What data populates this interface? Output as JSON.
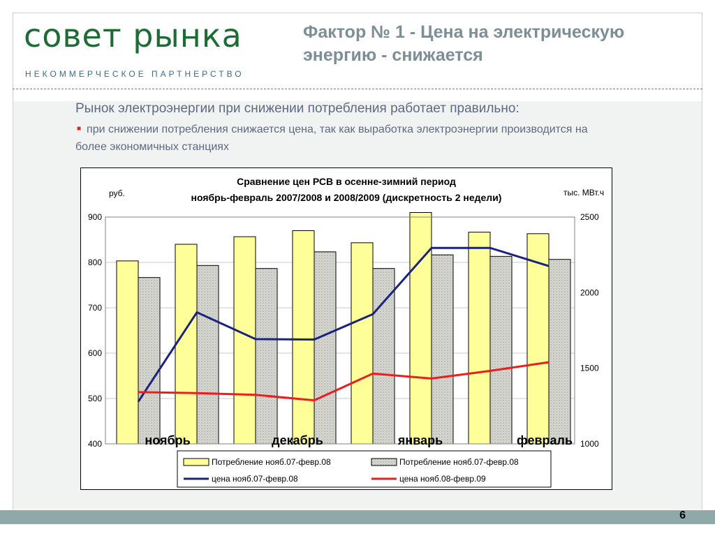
{
  "header": {
    "logo_title": "совет рынка",
    "logo_subtitle": "НЕКОММЕРЧЕСКОЕ ПАРТНЕРСТВО",
    "slide_title": "Фактор № 1 - Цена на электрическую энергию - снижается",
    "brand_color": "#1f6b36"
  },
  "body": {
    "heading": "Рынок электроэнергии при снижении потребления работает правильно:",
    "bullet": "при снижении потребления снижается цена, так как выработка электроэнергии производится на более экономичных станциях"
  },
  "footer": {
    "page_number": "6"
  },
  "chart_data": {
    "type": "bar",
    "title": "Сравнение цен РСВ в осенне-зимний период",
    "subtitle": "ноябрь-февраль 2007/2008 и 2008/2009 (дискретность 2 недели)",
    "ylabel_left": "руб.",
    "ylabel_right": "тыс. МВт.ч",
    "ylim_left": [
      400,
      900
    ],
    "ylim_right": [
      1000,
      2500
    ],
    "yticks_left": [
      "900",
      "800",
      "700",
      "600",
      "500",
      "400"
    ],
    "yticks_right": [
      "2500",
      "2000",
      "1500",
      "1000"
    ],
    "month_labels": [
      "ноябрь",
      "декабрь",
      "январь",
      "февраль"
    ],
    "grid": true,
    "legend_position": "bottom",
    "bar_series": [
      {
        "name": "Потребление нояб.07-февр.08",
        "axis": "right",
        "color": "#ffff99",
        "pattern": "solid",
        "values": [
          2210,
          2320,
          2370,
          2410,
          2330,
          2530,
          2400,
          2390
        ]
      },
      {
        "name": "Потребление нояб.07-февр.08",
        "axis": "right",
        "color": "#d9d9d4",
        "pattern": "dotted",
        "values": [
          2100,
          2180,
          2160,
          2270,
          2160,
          2250,
          2240,
          2220
        ]
      }
    ],
    "line_series": [
      {
        "name": "цена нояб.07-февр.08",
        "axis": "left",
        "color": "#1a237e",
        "values": [
          493,
          690,
          631,
          630,
          686,
          832,
          832,
          792
        ]
      },
      {
        "name": "цена нояб.08-февр.09",
        "axis": "left",
        "color": "#ee1c1c",
        "values": [
          514,
          512,
          508,
          496,
          555,
          544,
          561,
          580
        ]
      }
    ]
  }
}
